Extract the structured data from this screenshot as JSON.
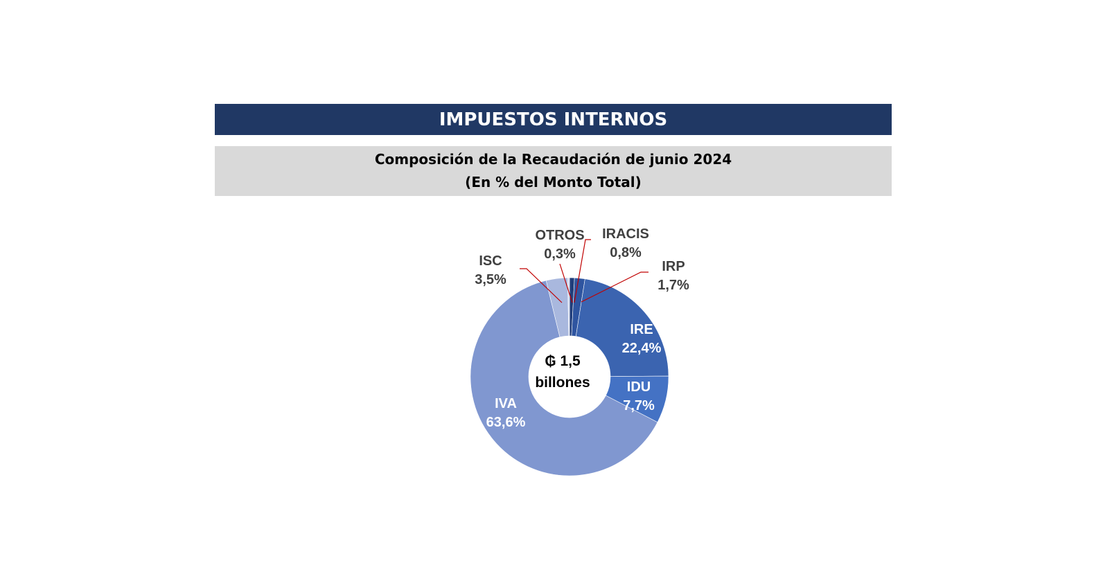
{
  "header": {
    "title": "IMPUESTOS INTERNOS"
  },
  "subtitle": {
    "line1": "Composición de la Recaudación de junio 2024",
    "line2": "(En % del Monto Total)"
  },
  "center": {
    "line1": "₲ 1,5",
    "line2": "billones"
  },
  "labels": {
    "iracis": {
      "name": "IRACIS",
      "value": "0,8%"
    },
    "irp": {
      "name": "IRP",
      "value": "1,7%"
    },
    "ire": {
      "name": "IRE",
      "value": "22,4%"
    },
    "idu": {
      "name": "IDU",
      "value": "7,7%"
    },
    "iva": {
      "name": "IVA",
      "value": "63,6%"
    },
    "isc": {
      "name": "ISC",
      "value": "3,5%"
    },
    "otros": {
      "name": "OTROS",
      "value": "0,3%"
    }
  },
  "colors": {
    "header_bg": "#203864",
    "subtitle_bg": "#d9d9d9",
    "leader_line": "#c00000"
  },
  "chart_data": {
    "type": "pie",
    "subtype": "donut",
    "title": "Composición de la Recaudación de junio 2024",
    "subtitle": "(En % del Monto Total)",
    "center_label": "₲ 1,5 billones",
    "categories": [
      "IRACIS",
      "IRP",
      "IRE",
      "IDU",
      "IVA",
      "ISC",
      "OTROS"
    ],
    "values": [
      0.8,
      1.7,
      22.4,
      7.7,
      63.6,
      3.5,
      0.3
    ],
    "unit": "%",
    "colors": [
      "#203d7a",
      "#2f55a0",
      "#3b64b0",
      "#4472c4",
      "#8097d0",
      "#a9b8de",
      "#d3dbef"
    ],
    "start_angle": "12 o'clock, clockwise",
    "legend": "data labels on slices"
  }
}
